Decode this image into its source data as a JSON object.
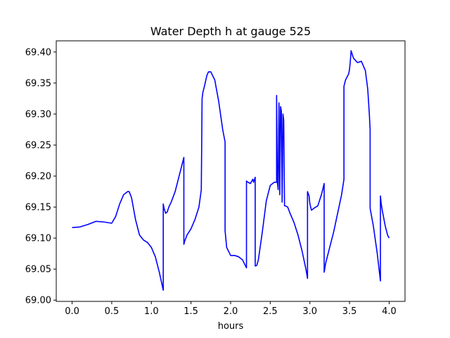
{
  "chart_data": {
    "type": "line",
    "title": "Water Depth h at gauge 525",
    "xlabel": "hours",
    "ylabel": "",
    "xlim": [
      -0.2,
      4.2
    ],
    "ylim": [
      68.998,
      69.418
    ],
    "xticks": [
      0.0,
      0.5,
      1.0,
      1.5,
      2.0,
      2.5,
      3.0,
      3.5,
      4.0
    ],
    "xtick_labels": [
      "0.0",
      "0.5",
      "1.0",
      "1.5",
      "2.0",
      "2.5",
      "3.0",
      "3.5",
      "4.0"
    ],
    "yticks": [
      69.0,
      69.05,
      69.1,
      69.15,
      69.2,
      69.25,
      69.3,
      69.35,
      69.4
    ],
    "ytick_labels": [
      "69.00",
      "69.05",
      "69.10",
      "69.15",
      "69.20",
      "69.25",
      "69.30",
      "69.35",
      "69.40"
    ],
    "grid": false,
    "legend": "none",
    "series": [
      {
        "color": "#0000ff",
        "x": [
          0.0,
          0.1,
          0.2,
          0.3,
          0.4,
          0.5,
          0.55,
          0.6,
          0.65,
          0.7,
          0.72,
          0.75,
          0.8,
          0.85,
          0.9,
          0.95,
          1.0,
          1.05,
          1.1,
          1.15,
          1.15,
          1.16,
          1.18,
          1.2,
          1.22,
          1.25,
          1.3,
          1.35,
          1.38,
          1.41,
          1.41,
          1.42,
          1.45,
          1.5,
          1.55,
          1.6,
          1.63,
          1.64,
          1.65,
          1.67,
          1.7,
          1.72,
          1.75,
          1.8,
          1.85,
          1.9,
          1.93,
          1.93,
          1.95,
          2.0,
          2.05,
          2.1,
          2.15,
          2.2,
          2.2,
          2.22,
          2.25,
          2.28,
          2.29,
          2.31,
          2.31,
          2.33,
          2.35,
          2.4,
          2.45,
          2.5,
          2.55,
          2.58,
          2.58,
          2.59,
          2.6,
          2.61,
          2.62,
          2.63,
          2.64,
          2.65,
          2.66,
          2.67,
          2.68,
          2.69,
          2.72,
          2.75,
          2.8,
          2.85,
          2.9,
          2.95,
          2.97,
          2.97,
          2.99,
          3.0,
          3.02,
          3.05,
          3.1,
          3.15,
          3.18,
          3.18,
          3.2,
          3.25,
          3.3,
          3.35,
          3.4,
          3.43,
          3.43,
          3.45,
          3.47,
          3.49,
          3.5,
          3.51,
          3.52,
          3.55,
          3.6,
          3.65,
          3.7,
          3.73,
          3.75,
          3.76,
          3.76,
          3.8,
          3.85,
          3.89,
          3.89,
          3.9,
          3.92,
          3.95,
          3.98,
          4.0
        ],
        "y": [
          69.117,
          69.118,
          69.122,
          69.127,
          69.126,
          69.124,
          69.135,
          69.155,
          69.17,
          69.175,
          69.175,
          69.165,
          69.13,
          69.105,
          69.097,
          69.093,
          69.085,
          69.07,
          69.045,
          69.016,
          69.155,
          69.148,
          69.14,
          69.142,
          69.15,
          69.158,
          69.175,
          69.2,
          69.215,
          69.23,
          69.09,
          69.095,
          69.105,
          69.115,
          69.13,
          69.15,
          69.178,
          69.325,
          69.335,
          69.345,
          69.362,
          69.368,
          69.368,
          69.355,
          69.32,
          69.275,
          69.255,
          69.112,
          69.085,
          69.072,
          69.072,
          69.07,
          69.065,
          69.052,
          69.192,
          69.19,
          69.188,
          69.195,
          69.19,
          69.198,
          69.055,
          69.056,
          69.065,
          69.11,
          69.16,
          69.185,
          69.19,
          69.19,
          69.33,
          69.19,
          69.178,
          69.318,
          69.17,
          69.312,
          69.305,
          69.158,
          69.3,
          69.29,
          69.152,
          69.152,
          69.15,
          69.14,
          69.125,
          69.105,
          69.08,
          69.05,
          69.035,
          69.175,
          69.168,
          69.155,
          69.145,
          69.148,
          69.152,
          69.172,
          69.188,
          69.045,
          69.06,
          69.085,
          69.11,
          69.14,
          69.17,
          69.195,
          69.345,
          69.355,
          69.36,
          69.365,
          69.372,
          69.385,
          69.402,
          69.39,
          69.383,
          69.385,
          69.37,
          69.34,
          69.3,
          69.275,
          69.148,
          69.12,
          69.075,
          69.031,
          69.168,
          69.155,
          69.14,
          69.12,
          69.105,
          69.1
        ]
      }
    ]
  }
}
